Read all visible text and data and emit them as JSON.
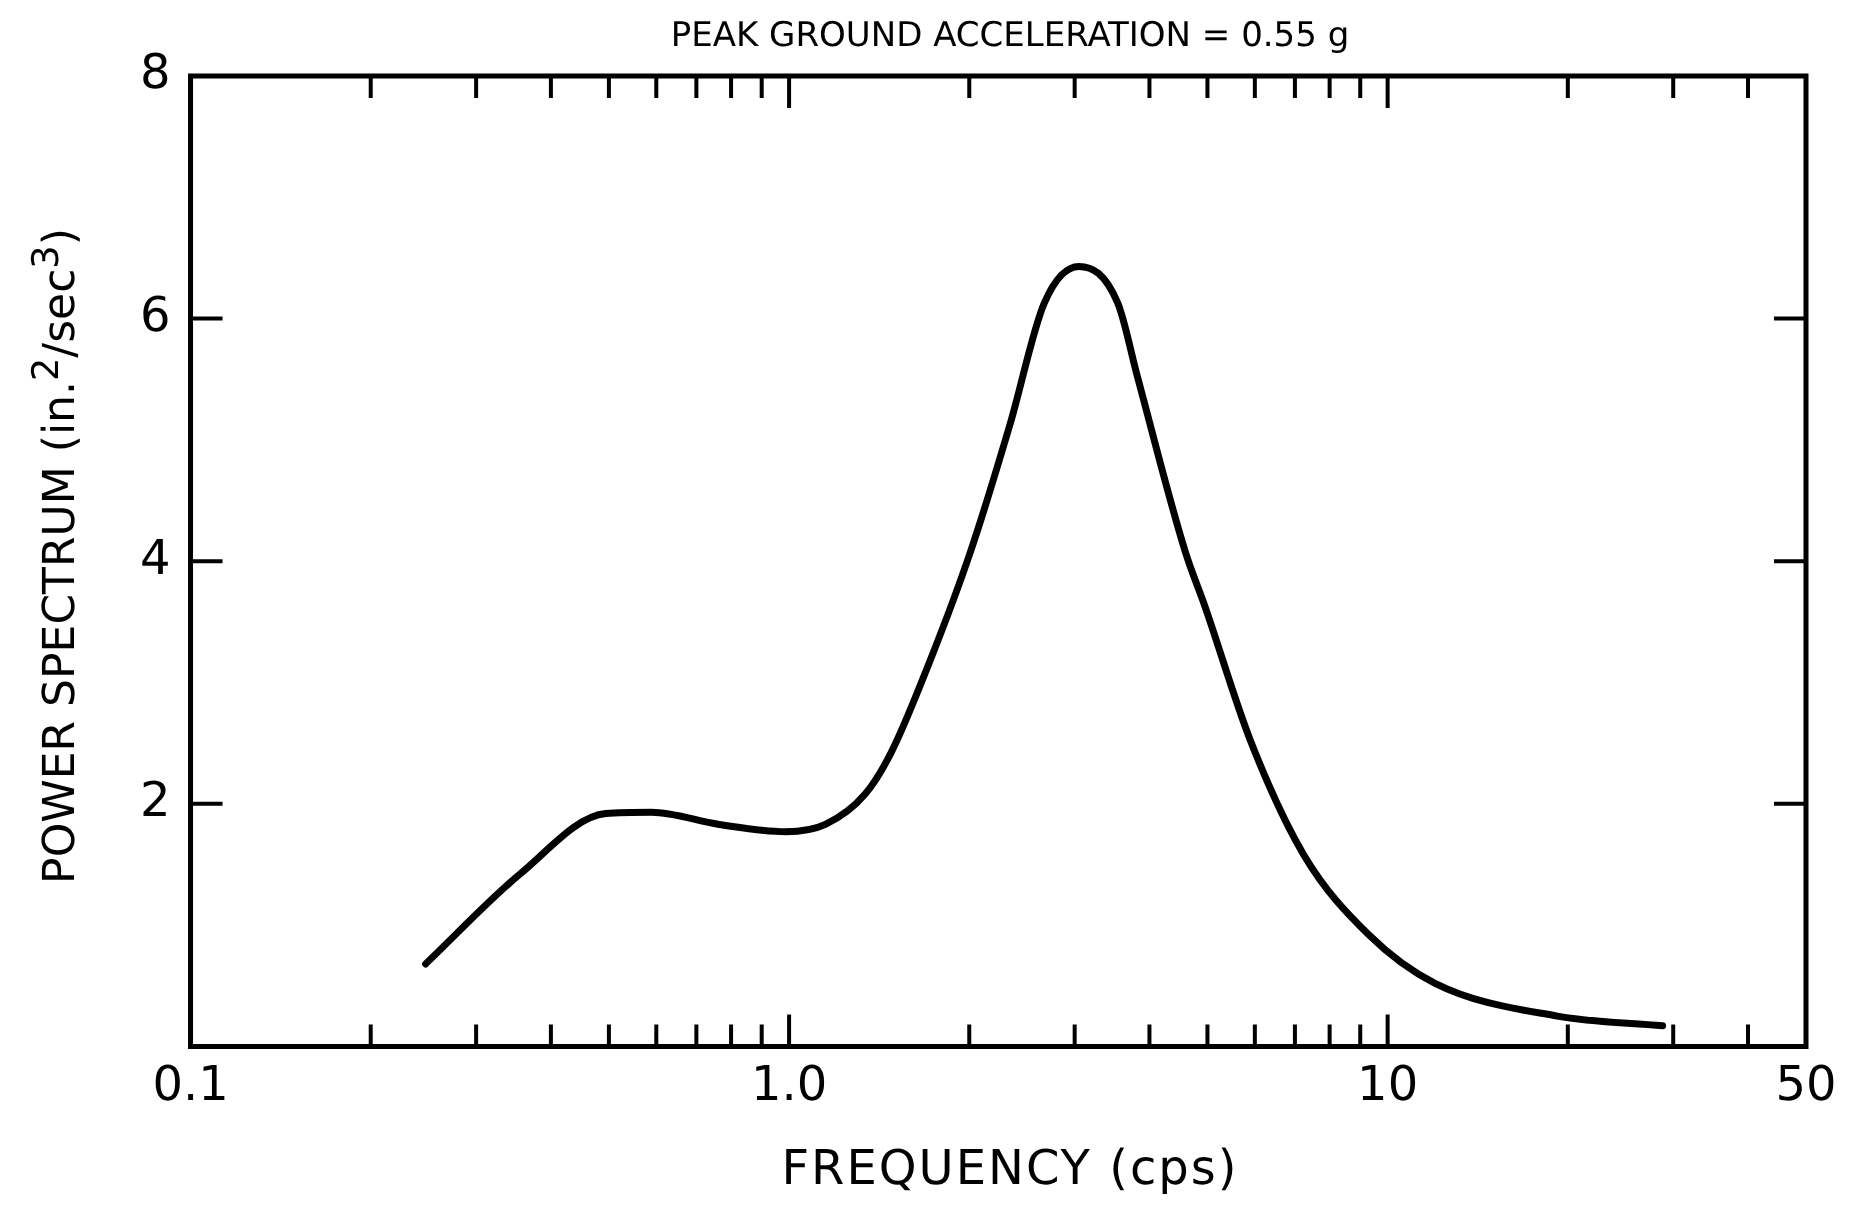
{
  "chart_data": {
    "type": "line",
    "title": "PEAK GROUND ACCELERATION = 0.55 g",
    "xlabel": "FREQUENCY (cps)",
    "ylabel": "POWER SPECTRUM (in.$^{2}$/sec$^{3}$)",
    "log": "x",
    "xlim": [
      0.1,
      50
    ],
    "ylim": [
      0,
      8
    ],
    "xticks": [
      {
        "value": 0.1,
        "label": "0.1"
      },
      {
        "value": 0.2,
        "label": null
      },
      {
        "value": 0.3,
        "label": null
      },
      {
        "value": 0.4,
        "label": null
      },
      {
        "value": 0.5,
        "label": null
      },
      {
        "value": 0.6,
        "label": null
      },
      {
        "value": 0.7,
        "label": null
      },
      {
        "value": 0.8,
        "label": null
      },
      {
        "value": 0.9,
        "label": null
      },
      {
        "value": 1,
        "label": "1.0"
      },
      {
        "value": 2,
        "label": null
      },
      {
        "value": 3,
        "label": null
      },
      {
        "value": 4,
        "label": null
      },
      {
        "value": 5,
        "label": null
      },
      {
        "value": 6,
        "label": null
      },
      {
        "value": 7,
        "label": null
      },
      {
        "value": 8,
        "label": null
      },
      {
        "value": 9,
        "label": null
      },
      {
        "value": 10,
        "label": "10"
      },
      {
        "value": 20,
        "label": null
      },
      {
        "value": 30,
        "label": null
      },
      {
        "value": 40,
        "label": null
      },
      {
        "value": 50,
        "label": "50"
      }
    ],
    "yticks": [
      2,
      4,
      6,
      8
    ],
    "legend": false,
    "marker": "none",
    "line_style": "solid",
    "series": [
      {
        "color": "#000000",
        "x": [
          0.247,
          0.355,
          0.494,
          0.589,
          0.764,
          0.987,
          1.15,
          1.34,
          1.48,
          1.72,
          2.01,
          2.34,
          2.67,
          3.05,
          3.54,
          3.82,
          4.59,
          4.95,
          5.9,
          7.24,
          9.3,
          12.0,
          19.2,
          28.8
        ],
        "values": [
          0.68,
          1.42,
          1.92,
          1.93,
          1.83,
          1.77,
          1.83,
          2.08,
          2.42,
          3.18,
          4.08,
          5.13,
          6.13,
          6.43,
          6.13,
          5.52,
          4.08,
          3.63,
          2.52,
          1.58,
          0.92,
          0.52,
          0.25,
          0.17
        ]
      }
    ]
  }
}
